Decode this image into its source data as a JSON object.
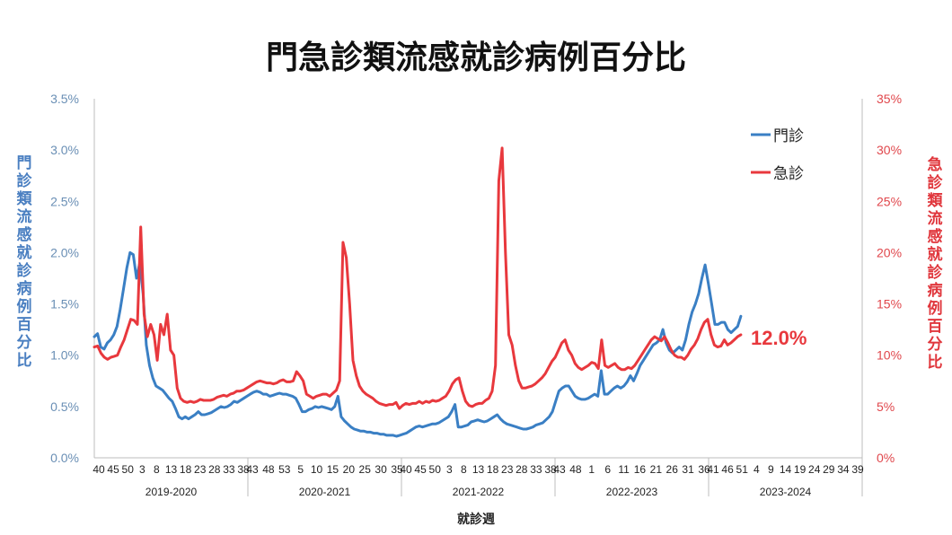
{
  "chart_data": {
    "type": "line",
    "title": "門急診類流感就診病例百分比",
    "xlabel": "就診週",
    "ylabel_left": "門診類流感就診病例百分比",
    "ylabel_right": "急診類流感就診病例百分比",
    "y_left_ticks": [
      "0.0%",
      "0.5%",
      "1.0%",
      "1.5%",
      "2.0%",
      "2.5%",
      "3.0%",
      "3.5%"
    ],
    "y_right_ticks": [
      "0%",
      "5%",
      "10%",
      "15%",
      "20%",
      "25%",
      "30%",
      "35%"
    ],
    "ylim_left": [
      0,
      3.5
    ],
    "ylim_right": [
      0,
      35
    ],
    "x_ticks": [
      [
        "40",
        "45",
        "50",
        "3",
        "8",
        "13",
        "18",
        "23",
        "28",
        "33",
        "38"
      ],
      [
        "43",
        "48",
        "53",
        "5",
        "10",
        "15",
        "20",
        "25",
        "30",
        "35"
      ],
      [
        "40",
        "45",
        "50",
        "3",
        "8",
        "13",
        "18",
        "23",
        "28",
        "33",
        "38"
      ],
      [
        "43",
        "48",
        "1",
        "6",
        "11",
        "16",
        "21",
        "26",
        "31",
        "36"
      ],
      [
        "41",
        "46",
        "51",
        "4",
        "9",
        "14",
        "19",
        "24",
        "29",
        "34",
        "39"
      ]
    ],
    "seasons": [
      "2019-2020",
      "2020-2021",
      "2021-2022",
      "2022-2023",
      "2023-2024"
    ],
    "legend": [
      "門診",
      "急診"
    ],
    "legend_position": "top-right",
    "annotation": "12.0%",
    "colors": {
      "outpatient": "#3a7fc4",
      "emergency": "#e8383d"
    },
    "series": [
      {
        "name": "門診",
        "axis": "left",
        "values": [
          1.18,
          1.21,
          1.08,
          1.06,
          1.12,
          1.15,
          1.2,
          1.28,
          1.45,
          1.65,
          1.85,
          2.0,
          1.98,
          1.75,
          1.9,
          1.6,
          1.1,
          0.9,
          0.78,
          0.7,
          0.68,
          0.66,
          0.62,
          0.58,
          0.55,
          0.48,
          0.4,
          0.38,
          0.4,
          0.38,
          0.4,
          0.42,
          0.45,
          0.42,
          0.42,
          0.43,
          0.44,
          0.46,
          0.48,
          0.5,
          0.49,
          0.5,
          0.52,
          0.55,
          0.54,
          0.56,
          0.58,
          0.6,
          0.62,
          0.64,
          0.65,
          0.64,
          0.62,
          0.62,
          0.6,
          0.61,
          0.62,
          0.63,
          0.62,
          0.62,
          0.61,
          0.6,
          0.58,
          0.52,
          0.45,
          0.45,
          0.47,
          0.48,
          0.5,
          0.49,
          0.5,
          0.49,
          0.48,
          0.47,
          0.5,
          0.6,
          0.4,
          0.36,
          0.33,
          0.3,
          0.28,
          0.27,
          0.26,
          0.26,
          0.25,
          0.25,
          0.24,
          0.24,
          0.23,
          0.23,
          0.22,
          0.22,
          0.22,
          0.21,
          0.22,
          0.23,
          0.24,
          0.26,
          0.28,
          0.3,
          0.31,
          0.3,
          0.31,
          0.32,
          0.33,
          0.33,
          0.34,
          0.36,
          0.38,
          0.4,
          0.45,
          0.52,
          0.3,
          0.3,
          0.31,
          0.32,
          0.35,
          0.36,
          0.37,
          0.36,
          0.35,
          0.36,
          0.38,
          0.4,
          0.42,
          0.38,
          0.35,
          0.33,
          0.32,
          0.31,
          0.3,
          0.29,
          0.28,
          0.28,
          0.29,
          0.3,
          0.32,
          0.33,
          0.34,
          0.37,
          0.4,
          0.45,
          0.55,
          0.65,
          0.68,
          0.7,
          0.7,
          0.65,
          0.6,
          0.58,
          0.57,
          0.57,
          0.58,
          0.6,
          0.62,
          0.6,
          0.85,
          0.62,
          0.62,
          0.65,
          0.68,
          0.7,
          0.68,
          0.7,
          0.74,
          0.8,
          0.75,
          0.82,
          0.9,
          0.95,
          1.0,
          1.05,
          1.1,
          1.12,
          1.15,
          1.25,
          1.12,
          1.05,
          1.02,
          1.05,
          1.08,
          1.05,
          1.15,
          1.3,
          1.42,
          1.5,
          1.6,
          1.75,
          1.88,
          1.7,
          1.5,
          1.3,
          1.3,
          1.32,
          1.32,
          1.25,
          1.22,
          1.25,
          1.28,
          1.38
        ]
      },
      {
        "name": "急診",
        "axis": "right",
        "values": [
          10.8,
          10.9,
          10.2,
          9.8,
          9.6,
          9.8,
          9.9,
          10.0,
          10.8,
          11.5,
          12.5,
          13.5,
          13.4,
          13.0,
          22.5,
          14.0,
          11.8,
          13.0,
          12.0,
          9.5,
          13.0,
          12.0,
          14.0,
          10.5,
          10.0,
          6.8,
          5.8,
          5.5,
          5.4,
          5.5,
          5.4,
          5.5,
          5.7,
          5.6,
          5.6,
          5.6,
          5.7,
          5.9,
          6.0,
          6.1,
          6.0,
          6.2,
          6.3,
          6.5,
          6.5,
          6.6,
          6.8,
          7.0,
          7.2,
          7.4,
          7.5,
          7.4,
          7.3,
          7.3,
          7.2,
          7.3,
          7.5,
          7.6,
          7.4,
          7.4,
          7.5,
          8.4,
          8.0,
          7.5,
          6.2,
          6.0,
          5.8,
          6.0,
          6.1,
          6.2,
          6.2,
          6.0,
          6.3,
          6.6,
          7.5,
          21.0,
          19.5,
          15.0,
          9.5,
          8.0,
          7.0,
          6.5,
          6.2,
          6.0,
          5.8,
          5.5,
          5.3,
          5.2,
          5.1,
          5.2,
          5.2,
          5.4,
          4.8,
          5.1,
          5.3,
          5.2,
          5.3,
          5.3,
          5.5,
          5.3,
          5.5,
          5.4,
          5.6,
          5.5,
          5.6,
          5.8,
          6.0,
          6.5,
          7.2,
          7.6,
          7.8,
          6.5,
          5.5,
          5.1,
          5.0,
          5.2,
          5.3,
          5.3,
          5.6,
          5.8,
          6.5,
          9.0,
          27.0,
          30.2,
          20.0,
          12.0,
          11.0,
          9.0,
          7.5,
          6.8,
          6.8,
          6.9,
          7.0,
          7.2,
          7.5,
          7.8,
          8.2,
          8.8,
          9.4,
          9.8,
          10.5,
          11.2,
          11.5,
          10.5,
          10.0,
          9.2,
          8.8,
          8.6,
          8.8,
          9.0,
          9.3,
          9.2,
          8.7,
          11.5,
          9.0,
          8.8,
          9.0,
          9.2,
          8.8,
          8.6,
          8.6,
          8.8,
          8.7,
          9.0,
          9.5,
          10.0,
          10.5,
          11.0,
          11.5,
          11.8,
          11.6,
          11.4,
          11.8,
          11.2,
          10.5,
          10.0,
          9.8,
          9.8,
          9.6,
          10.0,
          10.6,
          11.0,
          11.6,
          12.5,
          13.2,
          13.5,
          12.0,
          11.0,
          10.8,
          10.9,
          11.5,
          11.0,
          11.2,
          11.5,
          11.8,
          12.0
        ]
      }
    ]
  }
}
